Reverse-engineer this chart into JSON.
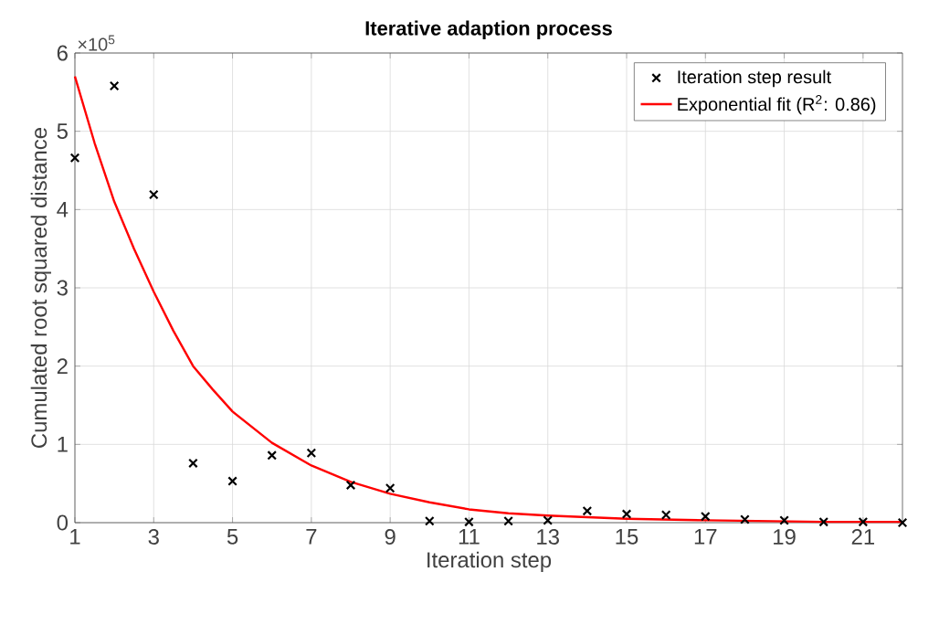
{
  "chart_data": {
    "type": "scatter",
    "title": "Iterative adaption process",
    "xlabel": "Iteration step",
    "ylabel": "Cumulated root squared distance",
    "annotations": [
      "×10$^{5}$"
    ],
    "xlim": [
      1,
      22
    ],
    "xticks": [
      1,
      3,
      5,
      7,
      9,
      11,
      13,
      15,
      17,
      19,
      21
    ],
    "ylim": [
      0,
      6
    ],
    "yticks": [
      0,
      1,
      2,
      3,
      4,
      5,
      6
    ],
    "grid": true,
    "legend": "top right",
    "series": [
      {
        "name": "Iteration step result",
        "marker": "cross",
        "color": "#000000",
        "x": [
          1,
          2,
          3,
          4,
          5,
          6,
          7,
          8,
          9,
          10,
          11,
          12,
          13,
          14,
          15,
          16,
          17,
          18,
          19,
          20,
          21,
          22
        ],
        "values": [
          4.66,
          5.58,
          4.19,
          0.76,
          0.53,
          0.86,
          0.89,
          0.48,
          0.44,
          0.02,
          0.01,
          0.02,
          0.03,
          0.15,
          0.11,
          0.1,
          0.08,
          0.04,
          0.03,
          0.01,
          0.01,
          0.0
        ]
      },
      {
        "name": "Exponential fit (R$^{2}$: 0.86)",
        "type": "line",
        "marker": "none",
        "color": "#ff0000",
        "x": [
          1,
          1.5,
          2,
          2.5,
          3,
          3.5,
          4,
          4.5,
          5,
          6,
          7,
          8,
          9,
          10,
          11,
          12,
          13,
          14,
          15,
          17,
          20,
          22
        ],
        "values": [
          5.7,
          4.85,
          4.1,
          3.5,
          2.95,
          2.45,
          2.0,
          1.7,
          1.42,
          1.02,
          0.73,
          0.52,
          0.37,
          0.26,
          0.17,
          0.12,
          0.09,
          0.07,
          0.05,
          0.03,
          0.01,
          0.01
        ]
      }
    ]
  }
}
